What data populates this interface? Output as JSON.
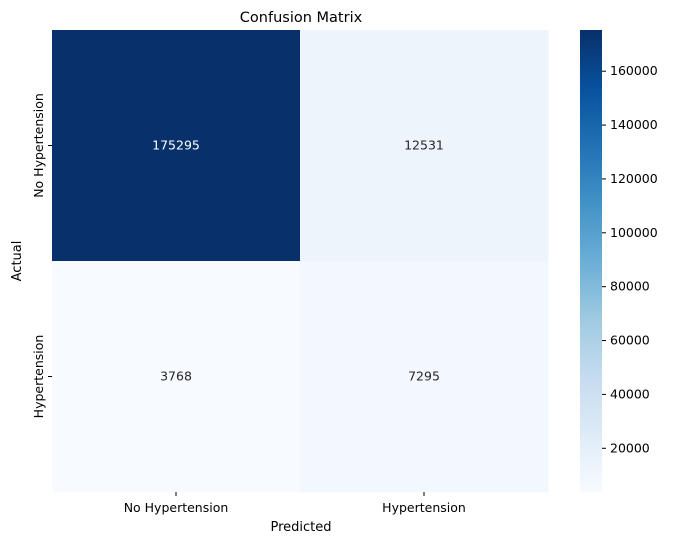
{
  "chart_data": {
    "type": "heatmap",
    "title": "Confusion Matrix",
    "xlabel": "Predicted",
    "ylabel": "Actual",
    "x_categories": [
      "No Hypertension",
      "Hypertension"
    ],
    "y_categories": [
      "No Hypertension",
      "Hypertension"
    ],
    "values": [
      [
        175295,
        12531
      ],
      [
        3768,
        7295
      ]
    ],
    "value_labels": [
      "175295",
      "12531",
      "3768",
      "7295"
    ],
    "colormap": "Blues",
    "color_range": [
      3768,
      175295
    ],
    "colorbar_ticks": [
      20000,
      40000,
      60000,
      80000,
      100000,
      120000,
      140000,
      160000
    ],
    "colorbar_tick_labels": [
      "20000",
      "40000",
      "60000",
      "80000",
      "100000",
      "120000",
      "140000",
      "160000"
    ]
  }
}
